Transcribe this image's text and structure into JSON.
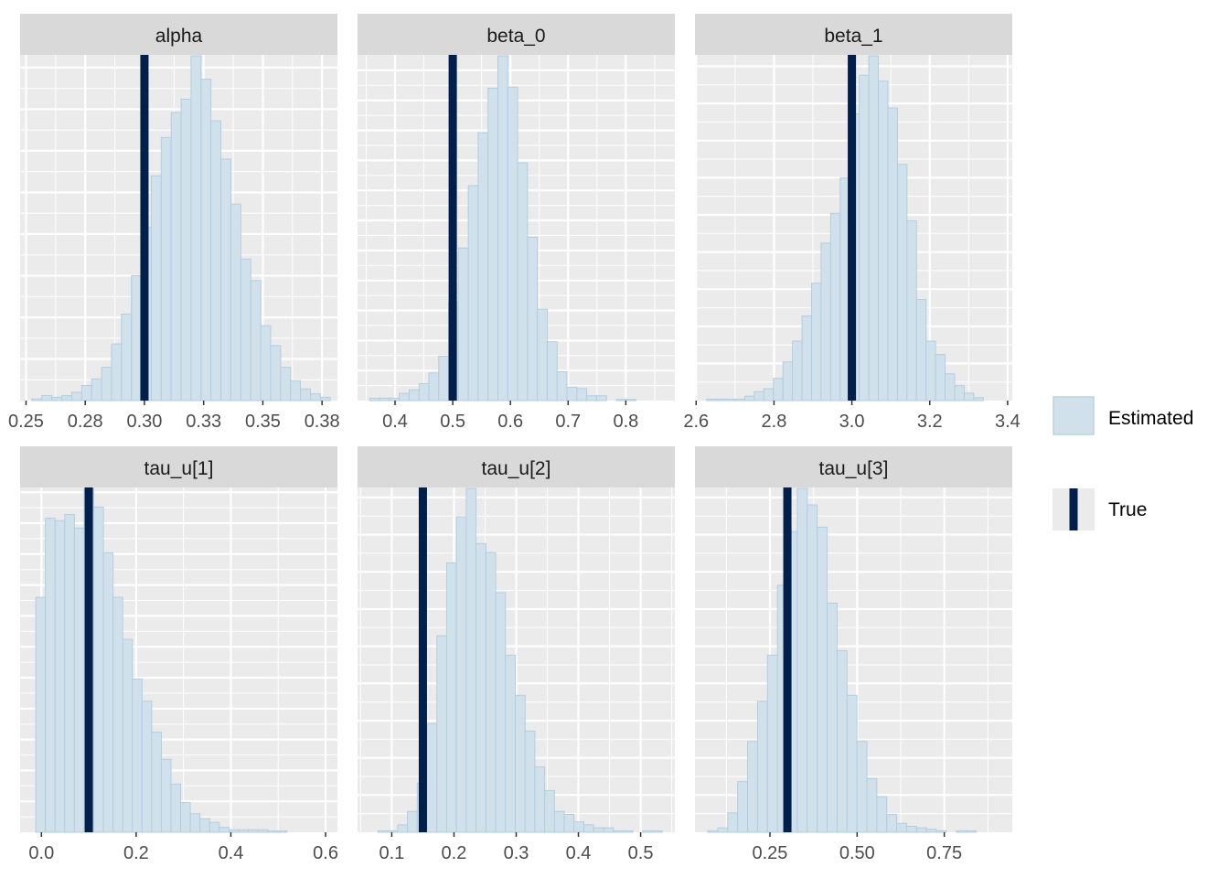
{
  "colors": {
    "panel_bg": "#EBEBEB",
    "strip_bg": "#D9D9D9",
    "grid": "#FFFFFF",
    "bar_fill": "#D1E1EC",
    "bar_stroke": "#B3CDE0",
    "true_line": "#011F4B",
    "tick_text": "#4D4D4D",
    "strip_text": "#1A1A1A"
  },
  "legend": {
    "items": [
      {
        "label": "Estimated",
        "key": "estimated"
      },
      {
        "label": "True",
        "key": "true"
      }
    ]
  },
  "chart_data": [
    {
      "type": "bar",
      "title": "alpha",
      "xlim": [
        0.2475,
        0.3815
      ],
      "ticks": [
        0.25,
        0.275,
        0.3,
        0.325,
        0.35,
        0.375
      ],
      "tick_labels": [
        "0.25",
        "0.28",
        "0.30",
        "0.33",
        "0.35",
        "0.38"
      ],
      "true_value": 0.3,
      "bins": {
        "start": 0.2525,
        "width": 0.0042,
        "counts": [
          1,
          3,
          2,
          3,
          5,
          9,
          13,
          20,
          34,
          52,
          75,
          104,
          135,
          158,
          173,
          181,
          207,
          193,
          168,
          145,
          118,
          85,
          72,
          45,
          33,
          20,
          12,
          7,
          4,
          2
        ]
      }
    },
    {
      "type": "bar",
      "title": "beta_0",
      "xlim": [
        0.335,
        0.885
      ],
      "ticks": [
        0.4,
        0.5,
        0.6,
        0.7,
        0.8
      ],
      "tick_labels": [
        "0.4",
        "0.5",
        "0.6",
        "0.7",
        "0.8"
      ],
      "true_value": 0.5,
      "bins": {
        "start": 0.356,
        "width": 0.0171,
        "counts": [
          2,
          2,
          2,
          6,
          9,
          14,
          23,
          37,
          82,
          127,
          179,
          223,
          260,
          287,
          261,
          198,
          136,
          76,
          49,
          24,
          11,
          10,
          4,
          4,
          0,
          1,
          1
        ]
      }
    },
    {
      "type": "bar",
      "title": "beta_1",
      "xlim": [
        2.597,
        3.412
      ],
      "ticks": [
        2.6,
        2.8,
        3.0,
        3.2,
        3.4
      ],
      "tick_labels": [
        "2.6",
        "2.8",
        "3.0",
        "3.2",
        "3.4"
      ],
      "true_value": 3.0,
      "bins": {
        "start": 2.627,
        "width": 0.0245,
        "counts": [
          1,
          1,
          1,
          1,
          3,
          6,
          8,
          15,
          26,
          40,
          57,
          79,
          106,
          126,
          150,
          193,
          219,
          232,
          215,
          197,
          159,
          121,
          68,
          40,
          31,
          18,
          10,
          5,
          2
        ]
      }
    },
    {
      "type": "bar",
      "title": "tau_u[1]",
      "xlim": [
        -0.045,
        0.625
      ],
      "ticks": [
        0.0,
        0.2,
        0.4,
        0.6
      ],
      "tick_labels": [
        "0.0",
        "0.2",
        "0.4",
        "0.6"
      ],
      "true_value": 0.1,
      "bins": {
        "start": -0.012,
        "width": 0.0204,
        "counts": [
          190,
          254,
          252,
          257,
          246,
          278,
          263,
          226,
          190,
          156,
          124,
          106,
          81,
          59,
          39,
          24,
          15,
          11,
          8,
          4,
          2,
          2,
          2,
          2,
          1,
          1
        ]
      }
    },
    {
      "type": "bar",
      "title": "tau_u[2]",
      "xlim": [
        0.045,
        0.555
      ],
      "ticks": [
        0.1,
        0.2,
        0.3,
        0.4,
        0.5
      ],
      "tick_labels": [
        "0.1",
        "0.2",
        "0.3",
        "0.4",
        "0.5"
      ],
      "true_value": 0.15,
      "bins": {
        "start": 0.078,
        "width": 0.01575,
        "counts": [
          1,
          1,
          5,
          14,
          33,
          73,
          132,
          181,
          212,
          231,
          194,
          188,
          161,
          119,
          92,
          68,
          44,
          28,
          14,
          12,
          7,
          5,
          3,
          3,
          1,
          1,
          0,
          1,
          1
        ]
      }
    },
    {
      "type": "bar",
      "title": "tau_u[3]",
      "xlim": [
        0.035,
        0.945
      ],
      "ticks": [
        0.25,
        0.5,
        0.75
      ],
      "tick_labels": [
        "0.25",
        "0.50",
        "0.75"
      ],
      "true_value": 0.3,
      "bins": {
        "start": 0.072,
        "width": 0.0285,
        "counts": [
          1,
          3,
          13,
          34,
          61,
          88,
          119,
          166,
          202,
          231,
          220,
          205,
          154,
          122,
          92,
          61,
          36,
          24,
          12,
          6,
          4,
          3,
          2,
          1,
          0,
          1,
          1
        ]
      }
    }
  ]
}
